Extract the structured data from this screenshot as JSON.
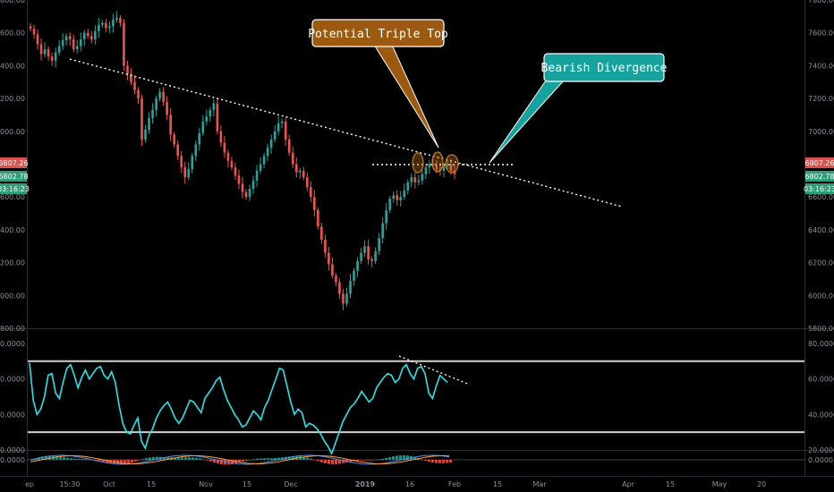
{
  "chart_data": [
    {
      "type": "candlestick",
      "panel": "price",
      "y_ticks": [
        "7800.00",
        "7600.00",
        "7400.00",
        "7200.00",
        "7000.00",
        "6800.00",
        "6600.00",
        "6400.00",
        "6200.00",
        "6000.00",
        "5800.00"
      ],
      "ylim": [
        5800,
        7800
      ],
      "x_ticks": [
        "ep",
        "15:30",
        "Oct",
        "15",
        "Nov",
        "15",
        "Dec",
        "2019",
        "16",
        "Feb",
        "15",
        "Mar",
        "Apr",
        "15",
        "May",
        "20"
      ],
      "price_tags": {
        "last_price": "6807.26",
        "mark_price": "6802.78",
        "countdown": "03:16:23"
      },
      "colors": {
        "up": "#26a69a",
        "down": "#ef5350",
        "tag_red": "#d9534f",
        "tag_green": "#2e9e78"
      },
      "ohlc_close": [
        7625,
        7590,
        7530,
        7470,
        7500,
        7455,
        7430,
        7480,
        7520,
        7555,
        7580,
        7560,
        7500,
        7520,
        7560,
        7600,
        7580,
        7560,
        7610,
        7650,
        7660,
        7630,
        7640,
        7680,
        7690,
        7660,
        7400,
        7350,
        7300,
        7250,
        7200,
        6950,
        7010,
        7080,
        7130,
        7200,
        7240,
        7180,
        7100,
        6980,
        6920,
        6850,
        6780,
        6720,
        6770,
        6850,
        6920,
        6990,
        7060,
        7090,
        7130,
        7170,
        7000,
        6930,
        6870,
        6820,
        6780,
        6730,
        6680,
        6630,
        6600,
        6650,
        6700,
        6760,
        6800,
        6850,
        6900,
        6950,
        7000,
        7050,
        7060,
        6950,
        6870,
        6800,
        6750,
        6760,
        6720,
        6660,
        6600,
        6520,
        6420,
        6340,
        6260,
        6190,
        6120,
        6080,
        6010,
        5950,
        6010,
        6090,
        6150,
        6210,
        6260,
        6300,
        6220,
        6210,
        6270,
        6350,
        6440,
        6520,
        6590,
        6610,
        6580,
        6600,
        6640,
        6690,
        6720,
        6690,
        6700,
        6740,
        6780,
        6800,
        6790,
        6770,
        6760,
        6790,
        6800,
        6760,
        6740
      ],
      "trendline_label": ""
    },
    {
      "type": "line",
      "panel": "rsi",
      "y_ticks": [
        "80.0000",
        "60.0000",
        "40.0000",
        "20.0000"
      ],
      "ylim": [
        20,
        88
      ],
      "overbought": 70,
      "oversold": 30,
      "series": [
        {
          "color": "#26e5ea",
          "values": [
            69,
            48,
            40,
            43,
            50,
            62,
            63,
            52,
            49,
            58,
            66,
            68,
            62,
            55,
            61,
            65,
            60,
            63,
            66,
            67,
            62,
            60,
            64,
            58,
            45,
            35,
            30,
            29,
            34,
            38,
            25,
            21,
            28,
            32,
            38,
            42,
            45,
            47,
            43,
            38,
            35,
            38,
            43,
            48,
            47,
            44,
            41,
            49,
            52,
            55,
            59,
            61,
            54,
            48,
            44,
            40,
            37,
            33,
            34,
            38,
            42,
            40,
            37,
            44,
            48,
            54,
            60,
            66,
            65,
            56,
            47,
            40,
            43,
            41,
            33,
            35,
            34,
            32,
            29,
            25,
            22,
            18,
            24,
            30,
            36,
            40,
            44,
            46,
            49,
            53,
            50,
            47,
            49,
            55,
            58,
            61,
            63,
            62,
            58,
            60,
            66,
            68,
            63,
            60,
            66,
            67,
            63,
            52,
            49,
            56,
            62,
            60,
            58
          ]
        }
      ]
    },
    {
      "type": "histogram",
      "panel": "macd",
      "y_ticks": [
        "0.0000"
      ]
    }
  ],
  "annotations": {
    "triple_top_label": "Potential Triple Top",
    "divergence_label": "Bearish Divergence"
  },
  "colors": {
    "triple_top_fill": "#9c5a10",
    "triple_top_border": "#ffffff",
    "divergence_fill": "#16a39d",
    "divergence_border": "#ffffff",
    "rsi_line": "#26e5ea"
  }
}
